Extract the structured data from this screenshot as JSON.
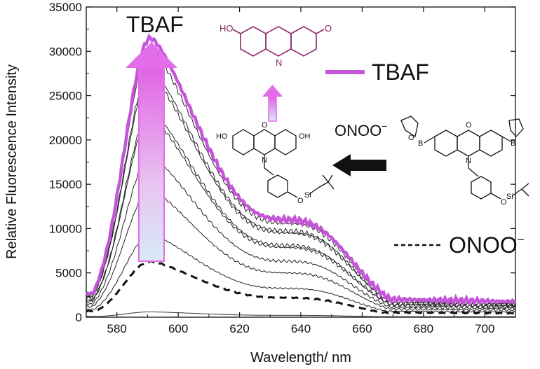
{
  "colors": {
    "tbaf_line": "#c455d8",
    "tbaf_arrow": "#e36de8",
    "structure_product": "#8b2a6a",
    "spectrum": "#222222",
    "axis": "#111111"
  },
  "chart_data": {
    "type": "line",
    "xlabel": "Wavelength/ nm",
    "ylabel": "Relative Fluorescence Intensity",
    "xlim": [
      570,
      710
    ],
    "ylim": [
      0,
      35000
    ],
    "xticks": [
      580,
      600,
      620,
      640,
      660,
      680,
      700
    ],
    "yticks": [
      0,
      5000,
      10000,
      15000,
      20000,
      25000,
      30000,
      35000
    ],
    "grid": false,
    "legend": [
      {
        "label": "TBAF",
        "style": "thick magenta solid line"
      },
      {
        "label": "ONOO",
        "superscript": "−",
        "style": "black dashed line"
      }
    ],
    "annotations": {
      "top_label": "TBAF",
      "reaction_label": "ONOO",
      "reaction_superscript": "−",
      "reaction_arrow": "black right-to-left arrow",
      "intensity_arrow": "magenta up arrow"
    },
    "peak_x": 591,
    "series": [
      {
        "style": "baseline",
        "peak": 600,
        "tail": 80
      },
      {
        "style": "dashed",
        "peak": 6300,
        "tail": 700
      },
      {
        "style": "thin",
        "peak": 9300,
        "tail": 900
      },
      {
        "style": "thin",
        "peak": 14300,
        "tail": 1200
      },
      {
        "style": "thin",
        "peak": 18100,
        "tail": 1500
      },
      {
        "style": "thin",
        "peak": 22500,
        "tail": 1800
      },
      {
        "style": "thin",
        "peak": 23200,
        "tail": 1900
      },
      {
        "style": "thin",
        "peak": 27200,
        "tail": 2200
      },
      {
        "style": "thin",
        "peak": 27900,
        "tail": 2300
      },
      {
        "style": "thin",
        "peak": 30300,
        "tail": 2500
      },
      {
        "style": "tbaf",
        "peak": 31500,
        "tail": 2700
      }
    ]
  },
  "structures": {
    "product": {
      "left_sub": "HO",
      "right_sub": "O",
      "ring_atom": "N"
    },
    "intermediate": {
      "left_sub": "HO",
      "right_sub": "OH",
      "ring_o": "O",
      "ring_n": "N",
      "link_o": "O",
      "si": "Si"
    },
    "probe": {
      "ring_o": "O",
      "ring_n": "N",
      "b_left": "B",
      "b_right": "B",
      "bo": "O",
      "link_o": "O",
      "si": "Si"
    }
  }
}
